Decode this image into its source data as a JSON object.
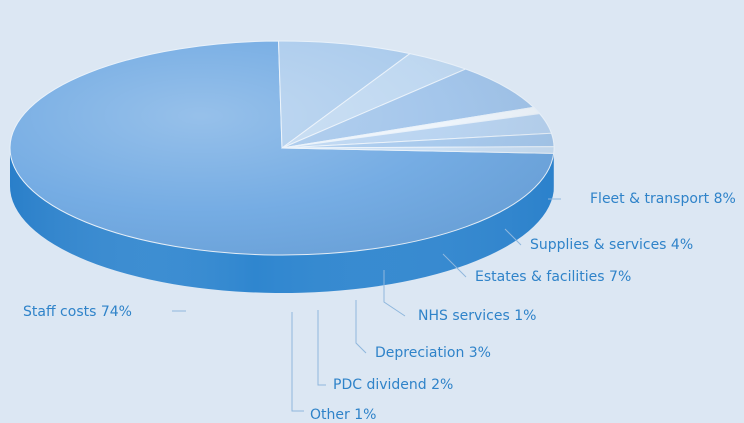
{
  "chart_data": {
    "type": "pie",
    "title": "",
    "slices": [
      {
        "label": "Staff costs 74%",
        "value": 74,
        "color": "#6ea8e2",
        "side": "#2f86cf"
      },
      {
        "label": "Fleet & transport 8%",
        "value": 8,
        "color": "#a9caec",
        "side": "#6aa4d9"
      },
      {
        "label": "Supplies & services 4%",
        "value": 4,
        "color": "#bcd6f0",
        "side": "#7fb1de"
      },
      {
        "label": "Estates & facilities 7%",
        "value": 7,
        "color": "#9fc3ea",
        "side": "#5c9ad5"
      },
      {
        "label": "NHS services 1%",
        "value": 1,
        "color": "#edf4fb",
        "side": "#b8d3ee"
      },
      {
        "label": "Depreciation 3%",
        "value": 3,
        "color": "#b6d2f0",
        "side": "#74a9dc"
      },
      {
        "label": "PDC dividend 2%",
        "value": 2,
        "color": "#a4c7ec",
        "side": "#5f9cd6"
      },
      {
        "label": "Other 1%",
        "value": 1,
        "color": "#c7ddf3",
        "side": "#86b5e0"
      }
    ]
  }
}
